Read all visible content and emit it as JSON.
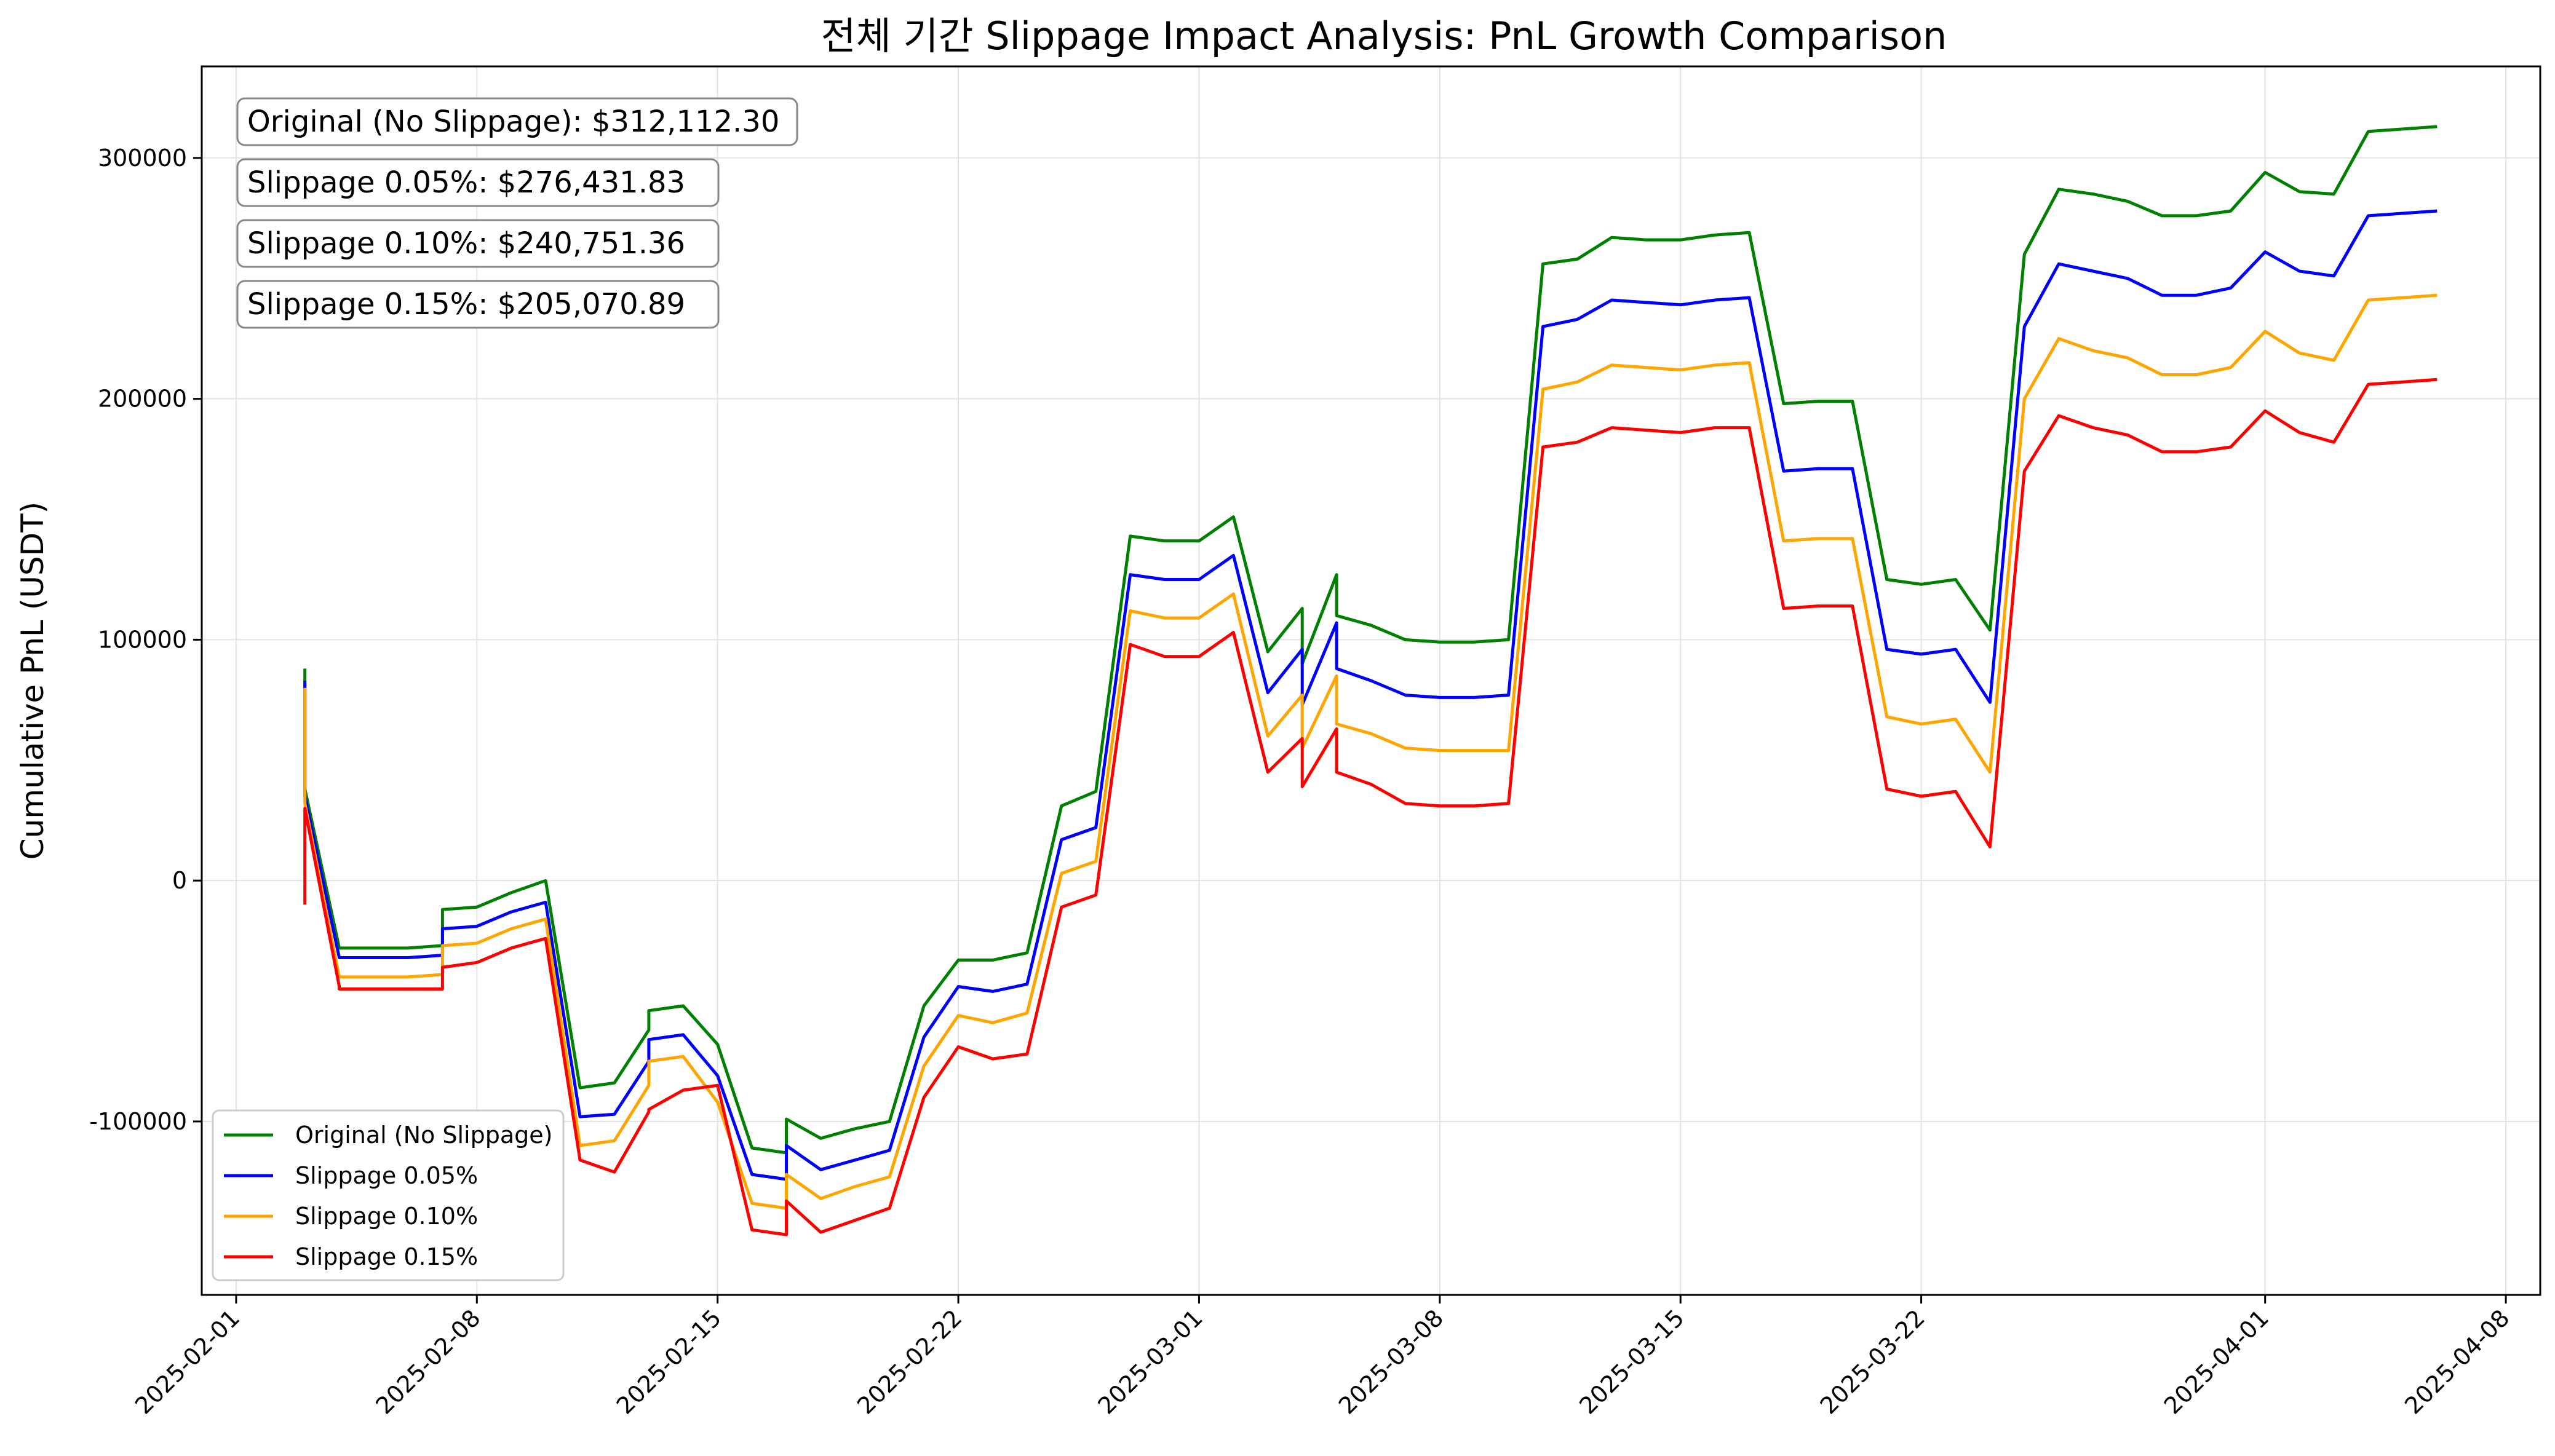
{
  "chart_data": {
    "type": "line",
    "title": "전체 기간 Slippage Impact Analysis: PnL Growth Comparison",
    "xlabel": "",
    "ylabel": "Cumulative PnL (USDT)",
    "grid": true,
    "legend_position": "lower-left",
    "xlim": [
      "2025-01-31",
      "2025-04-09"
    ],
    "ylim": [
      -172000,
      338000
    ],
    "x_ticks": [
      "2025-02-01",
      "2025-02-08",
      "2025-02-15",
      "2025-02-22",
      "2025-03-01",
      "2025-03-08",
      "2025-03-15",
      "2025-03-22",
      "2025-04-01",
      "2025-04-08"
    ],
    "y_ticks": [
      {
        "value": -100000,
        "label": "-100000"
      },
      {
        "value": 0,
        "label": "0"
      },
      {
        "value": 100000,
        "label": "100000"
      },
      {
        "value": 200000,
        "label": "200000"
      },
      {
        "value": 300000,
        "label": "300000"
      }
    ],
    "annotations": [
      "Original (No Slippage): $312,112.30",
      "Slippage 0.05%: $276,431.83",
      "Slippage 0.10%: $240,751.36",
      "Slippage 0.15%: $205,070.89"
    ],
    "x": [
      "2025-02-03",
      "2025-02-03",
      "2025-02-04",
      "2025-02-04",
      "2025-02-05",
      "2025-02-06",
      "2025-02-07",
      "2025-02-07",
      "2025-02-08",
      "2025-02-09",
      "2025-02-10",
      "2025-02-11",
      "2025-02-12",
      "2025-02-13",
      "2025-02-13",
      "2025-02-14",
      "2025-02-15",
      "2025-02-16",
      "2025-02-17",
      "2025-02-17",
      "2025-02-18",
      "2025-02-19",
      "2025-02-20",
      "2025-02-21",
      "2025-02-22",
      "2025-02-23",
      "2025-02-24",
      "2025-02-25",
      "2025-02-26",
      "2025-02-27",
      "2025-02-28",
      "2025-03-01",
      "2025-03-02",
      "2025-03-03",
      "2025-03-04",
      "2025-03-04",
      "2025-03-05",
      "2025-03-05",
      "2025-03-06",
      "2025-03-07",
      "2025-03-08",
      "2025-03-09",
      "2025-03-10",
      "2025-03-11",
      "2025-03-12",
      "2025-03-13",
      "2025-03-14",
      "2025-03-15",
      "2025-03-16",
      "2025-03-17",
      "2025-03-18",
      "2025-03-19",
      "2025-03-20",
      "2025-03-21",
      "2025-03-22",
      "2025-03-23",
      "2025-03-24",
      "2025-03-25",
      "2025-03-26",
      "2025-03-27",
      "2025-03-28",
      "2025-03-29",
      "2025-03-30",
      "2025-03-31",
      "2025-04-01",
      "2025-04-02",
      "2025-04-03",
      "2025-04-04",
      "2025-04-05",
      "2025-04-06"
    ],
    "series": [
      {
        "name": "Original (No Slippage)",
        "color": "#008000",
        "values": [
          88000,
          38000,
          -28000,
          -28000,
          -28000,
          -28000,
          -27000,
          -12000,
          -11000,
          -5000,
          0,
          -86000,
          -84000,
          -62000,
          -54000,
          -52000,
          -68000,
          -111000,
          -113000,
          -99000,
          -107000,
          -103000,
          -100000,
          -52000,
          -33000,
          -33000,
          -30000,
          31000,
          37000,
          143000,
          141000,
          141000,
          151000,
          95000,
          113000,
          90000,
          127000,
          110000,
          106000,
          100000,
          99000,
          99000,
          100000,
          256000,
          258000,
          267000,
          266000,
          266000,
          268000,
          269000,
          198000,
          199000,
          199000,
          125000,
          123000,
          125000,
          104000,
          260000,
          287000,
          285000,
          282000,
          276000,
          276000,
          278000,
          294000,
          286000,
          285000,
          311000,
          312000,
          313000
        ]
      },
      {
        "name": "Slippage 0.05%",
        "color": "#0000ff",
        "values": [
          83000,
          35000,
          -32000,
          -32000,
          -32000,
          -32000,
          -31000,
          -20000,
          -19000,
          -13000,
          -9000,
          -98000,
          -97000,
          -75000,
          -66000,
          -64000,
          -81000,
          -122000,
          -124000,
          -110000,
          -120000,
          -116000,
          -112000,
          -65000,
          -44000,
          -46000,
          -43000,
          17000,
          22000,
          127000,
          125000,
          125000,
          135000,
          78000,
          96000,
          73000,
          107000,
          88000,
          83000,
          77000,
          76000,
          76000,
          77000,
          230000,
          233000,
          241000,
          240000,
          239000,
          241000,
          242000,
          170000,
          171000,
          171000,
          96000,
          94000,
          96000,
          74000,
          230000,
          256000,
          253000,
          250000,
          243000,
          243000,
          246000,
          261000,
          253000,
          251000,
          276000,
          277000,
          278000
        ]
      },
      {
        "name": "Slippage 0.10%",
        "color": "#ffa500",
        "values": [
          80000,
          32000,
          -40000,
          -40000,
          -40000,
          -40000,
          -39000,
          -27000,
          -26000,
          -20000,
          -16000,
          -110000,
          -108000,
          -85000,
          -75000,
          -73000,
          -92000,
          -134000,
          -136000,
          -122000,
          -132000,
          -127000,
          -123000,
          -77000,
          -56000,
          -59000,
          -55000,
          3000,
          8000,
          112000,
          109000,
          109000,
          119000,
          60000,
          77000,
          55000,
          85000,
          65000,
          61000,
          55000,
          54000,
          54000,
          54000,
          204000,
          207000,
          214000,
          213000,
          212000,
          214000,
          215000,
          141000,
          142000,
          142000,
          68000,
          65000,
          67000,
          45000,
          200000,
          225000,
          220000,
          217000,
          210000,
          210000,
          213000,
          228000,
          219000,
          216000,
          241000,
          242000,
          243000
        ]
      },
      {
        "name": "Slippage 0.15%",
        "color": "#ff0000",
        "values": [
          -10000,
          30000,
          -44000,
          -45000,
          -45000,
          -45000,
          -45000,
          -36000,
          -34000,
          -28000,
          -24000,
          -116000,
          -121000,
          -96000,
          -95000,
          -87000,
          -85000,
          -145000,
          -147000,
          -133000,
          -146000,
          -141000,
          -136000,
          -90000,
          -69000,
          -74000,
          -72000,
          -11000,
          -6000,
          98000,
          93000,
          93000,
          103000,
          45000,
          59000,
          39000,
          63000,
          45000,
          40000,
          32000,
          31000,
          31000,
          32000,
          180000,
          182000,
          188000,
          187000,
          186000,
          188000,
          188000,
          113000,
          114000,
          114000,
          38000,
          35000,
          37000,
          14000,
          170000,
          193000,
          188000,
          185000,
          178000,
          178000,
          180000,
          195000,
          186000,
          182000,
          206000,
          207000,
          208000
        ]
      }
    ]
  }
}
